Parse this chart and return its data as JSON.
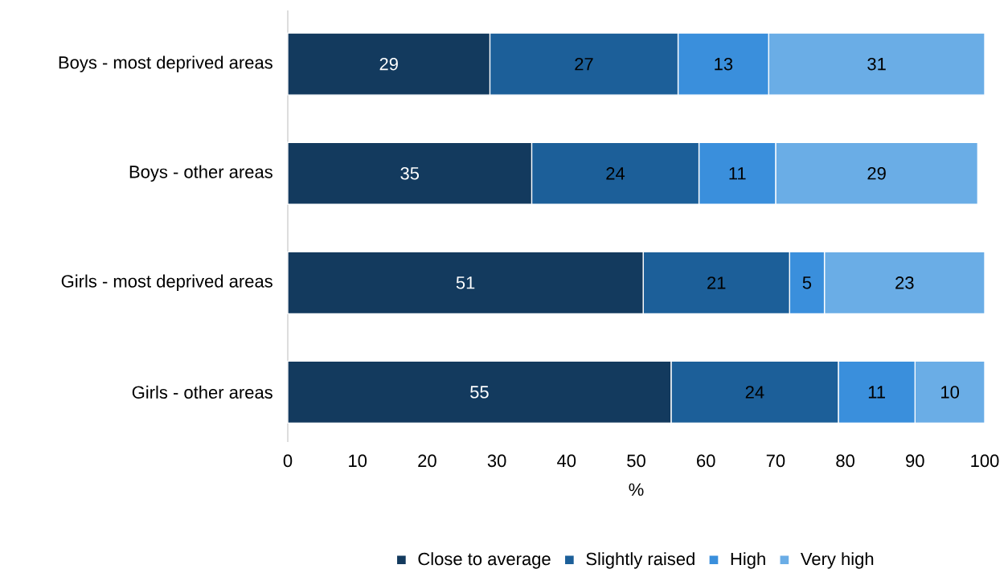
{
  "chart_data": {
    "type": "bar",
    "orientation": "horizontal",
    "stacked": true,
    "data_labels": true,
    "categories": [
      "Boys - most deprived areas",
      "Boys - other areas",
      "Girls - most deprived areas",
      "Girls - other areas"
    ],
    "series": [
      {
        "name": "Close to average",
        "color": "#133a5e",
        "values": [
          29,
          35,
          51,
          55
        ]
      },
      {
        "name": "Slightly raised",
        "color": "#1c5f99",
        "values": [
          27,
          24,
          21,
          24
        ]
      },
      {
        "name": "High",
        "color": "#3a8fdc",
        "values": [
          13,
          11,
          5,
          11
        ]
      },
      {
        "name": "Very high",
        "color": "#6aade6",
        "values": [
          31,
          29,
          23,
          10
        ]
      }
    ],
    "xlim": [
      0,
      100
    ],
    "xticks": [
      0,
      10,
      20,
      30,
      40,
      50,
      60,
      70,
      80,
      90,
      100
    ],
    "xlabel": "%",
    "legend": "bottom"
  }
}
